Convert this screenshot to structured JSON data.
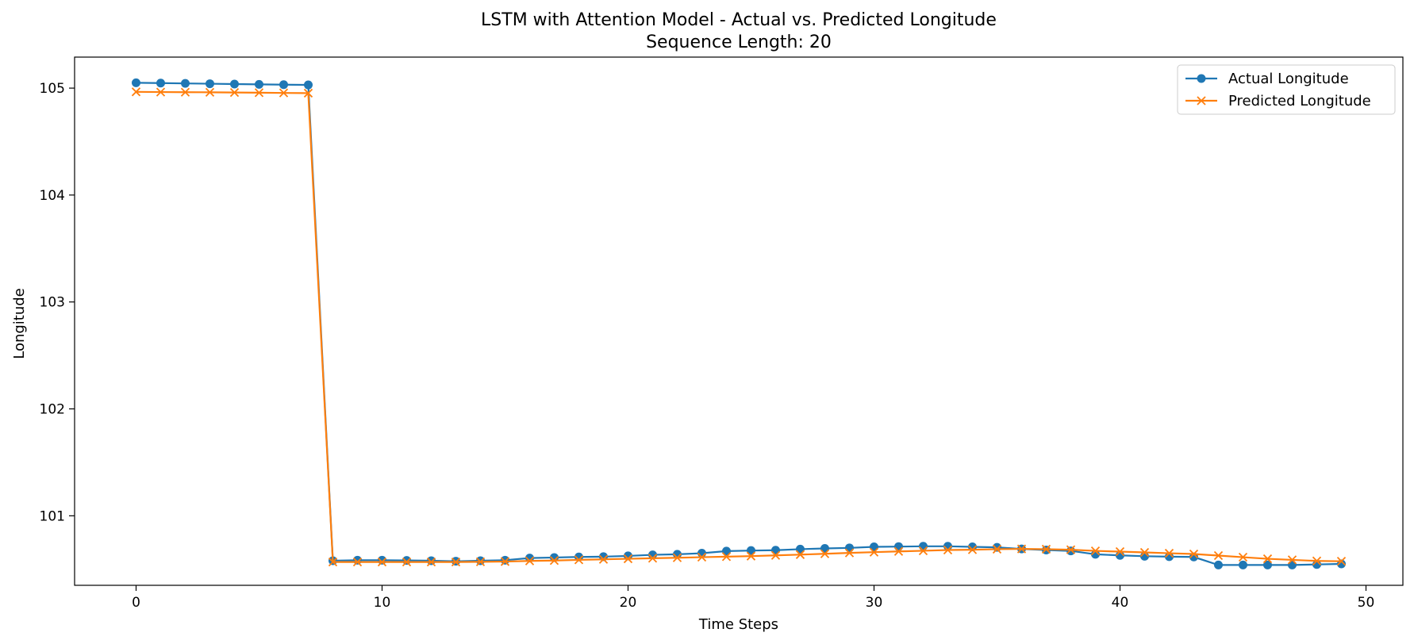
{
  "chart_data": {
    "type": "line",
    "title": "LSTM with Attention Model - Actual vs. Predicted Longitude",
    "subtitle": "Sequence Length: 20",
    "xlabel": "Time Steps",
    "ylabel": "Longitude",
    "xlim": [
      -2.5,
      51.5
    ],
    "ylim": [
      100.35,
      105.29
    ],
    "xticks": [
      0,
      10,
      20,
      30,
      40,
      50
    ],
    "yticks": [
      101,
      102,
      103,
      104,
      105
    ],
    "grid": false,
    "legend_position": "top-right",
    "x": [
      0,
      1,
      2,
      3,
      4,
      5,
      6,
      7,
      8,
      9,
      10,
      11,
      12,
      13,
      14,
      15,
      16,
      17,
      18,
      19,
      20,
      21,
      22,
      23,
      24,
      25,
      26,
      27,
      28,
      29,
      30,
      31,
      32,
      33,
      34,
      35,
      36,
      37,
      38,
      39,
      40,
      41,
      42,
      43,
      44,
      45,
      46,
      47,
      48,
      49
    ],
    "series": [
      {
        "name": "Actual Longitude",
        "color": "#1f77b4",
        "marker": "circle",
        "values": [
          105.05,
          105.047,
          105.044,
          105.041,
          105.038,
          105.035,
          105.032,
          105.03,
          100.58,
          100.585,
          100.585,
          100.583,
          100.58,
          100.575,
          100.58,
          100.585,
          100.605,
          100.61,
          100.615,
          100.618,
          100.625,
          100.635,
          100.64,
          100.65,
          100.67,
          100.675,
          100.678,
          100.688,
          100.695,
          100.7,
          100.71,
          100.712,
          100.715,
          100.715,
          100.71,
          100.705,
          100.69,
          100.68,
          100.672,
          100.64,
          100.63,
          100.622,
          100.618,
          100.615,
          100.54,
          100.54,
          100.54,
          100.54,
          100.545,
          100.55
        ]
      },
      {
        "name": "Predicted Longitude",
        "color": "#ff7f0e",
        "marker": "x",
        "values": [
          104.965,
          104.963,
          104.962,
          104.961,
          104.959,
          104.957,
          104.955,
          104.953,
          100.568,
          100.568,
          100.568,
          100.568,
          100.568,
          100.568,
          100.57,
          100.572,
          100.578,
          100.582,
          100.588,
          100.593,
          100.598,
          100.603,
          100.608,
          100.613,
          100.618,
          100.623,
          100.63,
          100.637,
          100.645,
          100.653,
          100.66,
          100.667,
          100.673,
          100.68,
          100.683,
          100.688,
          100.69,
          100.688,
          100.683,
          100.672,
          100.665,
          100.658,
          100.65,
          100.643,
          100.628,
          100.613,
          100.598,
          100.588,
          100.578,
          100.575
        ]
      }
    ]
  }
}
